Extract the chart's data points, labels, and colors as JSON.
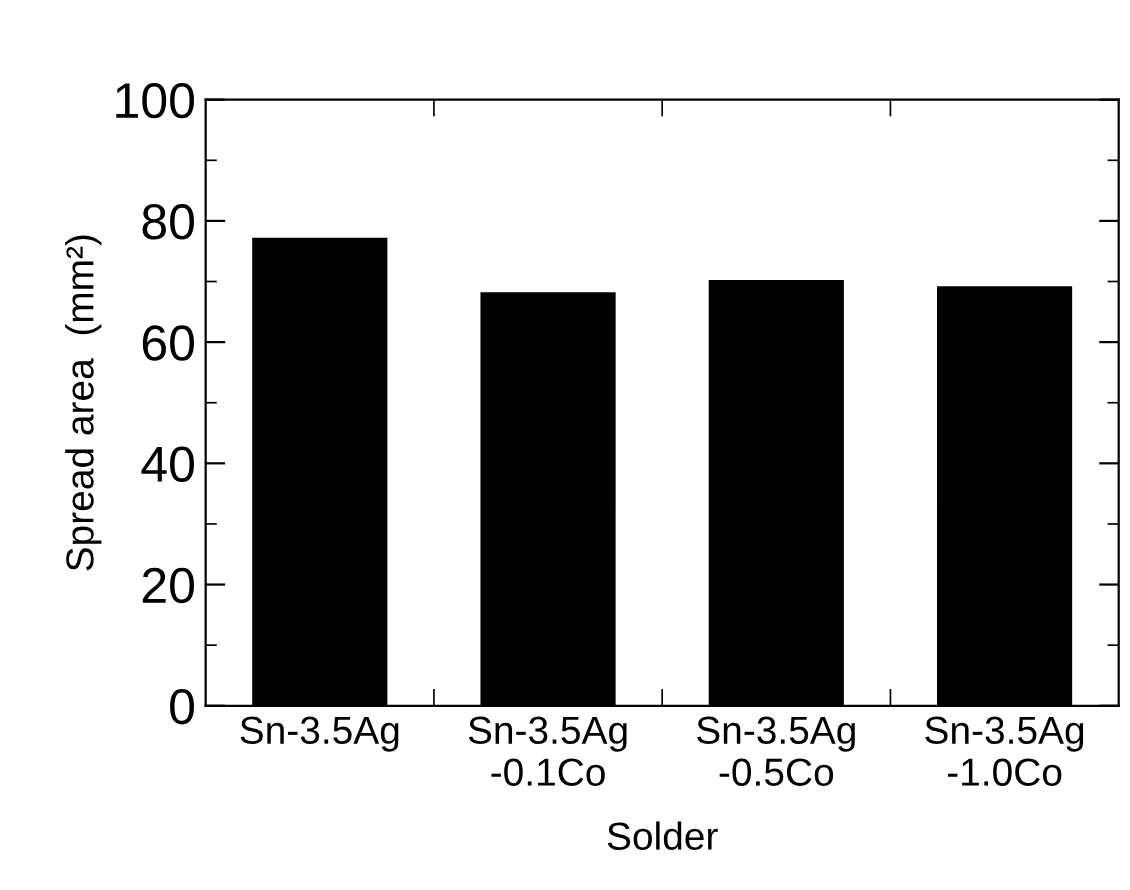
{
  "chart_data": {
    "type": "bar",
    "xlabel": "Solder",
    "ylabel": "Spread area  (mm²)",
    "categories": [
      "Sn-3.5Ag",
      "Sn-3.5Ag\n-0.1Co",
      "Sn-3.5Ag\n-0.5Co",
      "Sn-3.5Ag\n-1.0Co"
    ],
    "values": [
      77,
      68,
      70,
      69
    ],
    "color": "#000000",
    "ylim": [
      0,
      100
    ],
    "yticks": [
      0,
      20,
      40,
      60,
      80,
      100
    ],
    "grid": false,
    "legend": false
  }
}
